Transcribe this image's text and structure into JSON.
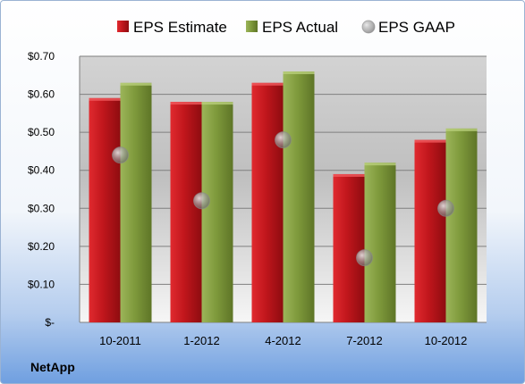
{
  "company": "NetApp",
  "chart_data": {
    "type": "bar",
    "categories": [
      "10-2011",
      "1-2012",
      "4-2012",
      "7-2012",
      "10-2012"
    ],
    "series": [
      {
        "name": "EPS Estimate",
        "type": "bar",
        "color": "#c0161c",
        "values": [
          0.59,
          0.58,
          0.63,
          0.39,
          0.48
        ]
      },
      {
        "name": "EPS Actual",
        "type": "bar",
        "color": "#7f9a3c",
        "values": [
          0.63,
          0.58,
          0.66,
          0.42,
          0.51
        ]
      },
      {
        "name": "EPS GAAP",
        "type": "marker",
        "color": "#a8a8a8",
        "values": [
          0.44,
          0.32,
          0.48,
          0.17,
          0.3
        ]
      }
    ],
    "yticks": [
      {
        "value": 0.0,
        "label": "$-"
      },
      {
        "value": 0.1,
        "label": "$0.10"
      },
      {
        "value": 0.2,
        "label": "$0.20"
      },
      {
        "value": 0.3,
        "label": "$0.30"
      },
      {
        "value": 0.4,
        "label": "$0.40"
      },
      {
        "value": 0.5,
        "label": "$0.50"
      },
      {
        "value": 0.6,
        "label": "$0.60"
      },
      {
        "value": 0.7,
        "label": "$0.70"
      }
    ],
    "ylim": [
      0,
      0.7
    ],
    "grid": true,
    "legend_position": "top"
  }
}
